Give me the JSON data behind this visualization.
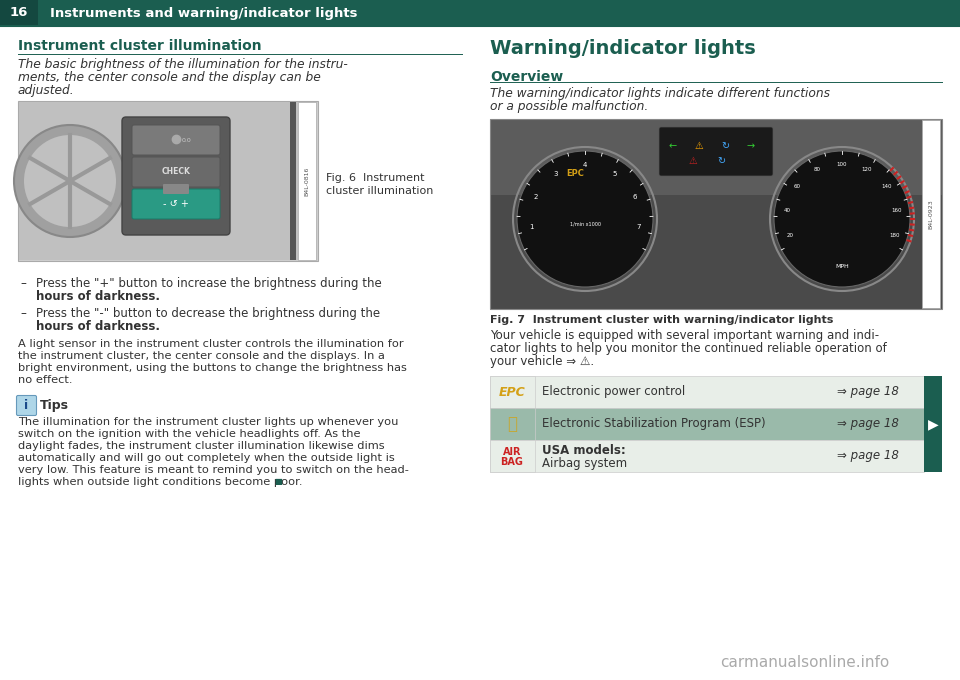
{
  "page_num": "16",
  "header_title": "Instruments and warning/indicator lights",
  "header_bg": "#1b5e50",
  "teal_color": "#1b5e50",
  "bg_color": "#ffffff",
  "left_section_title": "Instrument cluster illumination",
  "left_italic_lines": [
    "The basic brightness of the illumination for the instru-",
    "ments, the center console and the display can be",
    "adjusted."
  ],
  "fig6_caption_line1": "Fig. 6  Instrument",
  "fig6_caption_line2": "cluster illumination",
  "bullet1_line1": "Press the \"+\" button to increase the brightness during the",
  "bullet1_line2": "hours of darkness.",
  "bullet2_line1": "Press the \"-\" button to decrease the brightness during the",
  "bullet2_line2": "hours of darkness.",
  "para1_lines": [
    "A light sensor in the instrument cluster controls the illumination for",
    "the instrument cluster, the center console and the displays. In a",
    "bright environment, using the buttons to change the brightness has",
    "no effect."
  ],
  "tips_title": "Tips",
  "tips_lines": [
    "The illumination for the instrument cluster lights up whenever you",
    "switch on the ignition with the vehicle headlights off. As the",
    "daylight fades, the instrument cluster illumination likewise dims",
    "automatically and will go out completely when the outside light is",
    "very low. This feature is meant to remind you to switch on the head-",
    "lights when outside light conditions become poor."
  ],
  "right_section_title": "Warning/indicator lights",
  "right_sub_title": "Overview",
  "right_italic_lines": [
    "The warning/indicator lights indicate different functions",
    "or a possible malfunction."
  ],
  "fig7_caption": "Fig. 7  Instrument cluster with warning/indicator lights",
  "vehicle_desc_lines": [
    "Your vehicle is equipped with several important warning and indi-",
    "cator lights to help you monitor the continued reliable operation of",
    "your vehicle ⇒ ⚠."
  ],
  "table_rows": [
    {
      "icon_text": "EPC",
      "icon_color": "#d4a017",
      "icon_bg": "#e8eee8",
      "row_bg": "#e8eee8",
      "description": "Electronic power control",
      "page_ref": "⇒ page 18"
    },
    {
      "icon_text": "esp_icon",
      "icon_color": "#c4a835",
      "icon_bg": "#9abaaa",
      "row_bg": "#9abaaa",
      "description": "Electronic Stabilization Program (ESP)",
      "page_ref": "⇒ page 18"
    },
    {
      "icon_text": "AIR\nBAG",
      "icon_color": "#cc2222",
      "icon_bg": "#e8eee8",
      "row_bg": "#e8eee8",
      "description_bold": "USA models:",
      "description": "Airbag system",
      "page_ref": "⇒ page 18"
    }
  ],
  "text_color": "#333333",
  "footer_text": "carmanualsonline.info"
}
